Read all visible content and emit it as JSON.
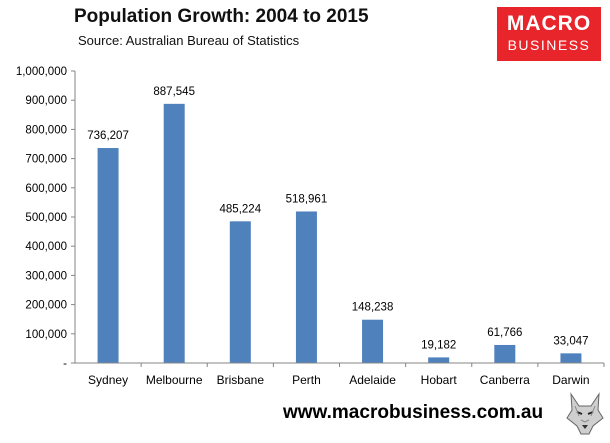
{
  "header": {
    "title": "Population Growth: 2004 to 2015",
    "subtitle": "Source: Australian Bureau of Statistics"
  },
  "logo": {
    "line1": "MACRO",
    "line2": "BUSINESS",
    "color": "#e8252b"
  },
  "footer": {
    "url": "www.macrobusiness.com.au"
  },
  "chart_data": {
    "type": "bar",
    "title": "Population Growth: 2004 to 2015",
    "subtitle": "Source: Australian Bureau of Statistics",
    "categories": [
      "Sydney",
      "Melbourne",
      "Brisbane",
      "Perth",
      "Adelaide",
      "Hobart",
      "Canberra",
      "Darwin"
    ],
    "values": [
      736207,
      887545,
      485224,
      518961,
      148238,
      19182,
      61766,
      33047
    ],
    "data_labels": [
      "736,207",
      "887,545",
      "485,224",
      "518,961",
      "148,238",
      "19,182",
      "61,766",
      "33,047"
    ],
    "ylim": [
      0,
      1000000
    ],
    "y_ticks": [
      0,
      100000,
      200000,
      300000,
      400000,
      500000,
      600000,
      700000,
      800000,
      900000,
      1000000
    ],
    "y_tick_labels": [
      "-",
      "100,000",
      "200,000",
      "300,000",
      "400,000",
      "500,000",
      "600,000",
      "700,000",
      "800,000",
      "900,000",
      "1,000,000"
    ],
    "grid": false,
    "legend": "none",
    "bar_color": "#4f81bd"
  }
}
